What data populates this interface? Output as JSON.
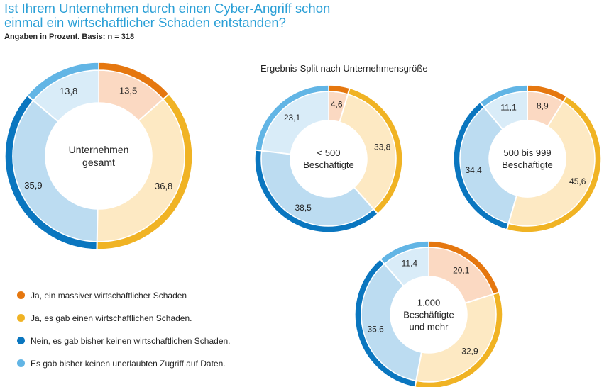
{
  "title": {
    "line1": "Ist Ihrem Unternehmen durch einen Cyber-Angriff schon",
    "line2": "einmal ein wirtschaftlicher Schaden entstanden?"
  },
  "subtitle": "Angaben in Prozent. Basis: n = 318",
  "split_title": "Ergebnis-Split nach Unternehmensgröße",
  "legend": [
    {
      "label": "Ja, ein massiver wirtschaftlicher Schaden",
      "color": "#e5770f"
    },
    {
      "label": "Ja, es gab einen wirtschaftlichen Schaden.",
      "color": "#f0b324"
    },
    {
      "label": "Nein, es gab bisher keinen wirtschaftlichen Schaden.",
      "color": "#0a76bf"
    },
    {
      "label": "Es gab bisher keinen unerlaubten Zugriff auf Daten.",
      "color": "#62b5e5"
    }
  ],
  "colors": {
    "outer": [
      "#e5770f",
      "#f0b324",
      "#0a76bf",
      "#62b5e5"
    ],
    "inner": [
      "#fbd9c2",
      "#fde9c3",
      "#bcdcf1",
      "#d9ecf8"
    ]
  },
  "chart_data": [
    {
      "type": "pie",
      "subtype": "donut",
      "center_label": [
        "Unternehmen",
        "gesamt"
      ],
      "categories": [
        "Ja, ein massiver wirtschaftlicher Schaden",
        "Ja, es gab einen wirtschaftlichen Schaden.",
        "Nein, es gab bisher keinen wirtschaftlichen Schaden.",
        "Es gab bisher keinen unerlaubten Zugriff auf Daten."
      ],
      "values": [
        13.5,
        36.8,
        35.9,
        13.8
      ],
      "value_labels": [
        "13,5",
        "36,8",
        "35,9",
        "13,8"
      ]
    },
    {
      "type": "pie",
      "subtype": "donut",
      "center_label": [
        "< 500",
        "Beschäftigte"
      ],
      "categories": [
        "Ja, ein massiver wirtschaftlicher Schaden",
        "Ja, es gab einen wirtschaftlichen Schaden.",
        "Nein, es gab bisher keinen wirtschaftlichen Schaden.",
        "Es gab bisher keinen unerlaubten Zugriff auf Daten."
      ],
      "values": [
        4.6,
        33.8,
        38.5,
        23.1
      ],
      "value_labels": [
        "4,6",
        "33,8",
        "38,5",
        "23,1"
      ]
    },
    {
      "type": "pie",
      "subtype": "donut",
      "center_label": [
        "500 bis 999",
        "Beschäftigte"
      ],
      "categories": [
        "Ja, ein massiver wirtschaftlicher Schaden",
        "Ja, es gab einen wirtschaftlichen Schaden.",
        "Nein, es gab bisher keinen wirtschaftlichen Schaden.",
        "Es gab bisher keinen unerlaubten Zugriff auf Daten."
      ],
      "values": [
        8.9,
        45.6,
        34.4,
        11.1
      ],
      "value_labels": [
        "8,9",
        "45,6",
        "34,4",
        "11,1"
      ]
    },
    {
      "type": "pie",
      "subtype": "donut",
      "center_label": [
        "1.000",
        "Beschäftigte",
        "und mehr"
      ],
      "categories": [
        "Ja, ein massiver wirtschaftlicher Schaden",
        "Ja, es gab einen wirtschaftlichen Schaden.",
        "Nein, es gab bisher keinen wirtschaftlichen Schaden.",
        "Es gab bisher keinen unerlaubten Zugriff auf Daten."
      ],
      "values": [
        20.1,
        32.9,
        35.6,
        11.4
      ],
      "value_labels": [
        "20,1",
        "32,9",
        "35,6",
        "11,4"
      ]
    }
  ]
}
